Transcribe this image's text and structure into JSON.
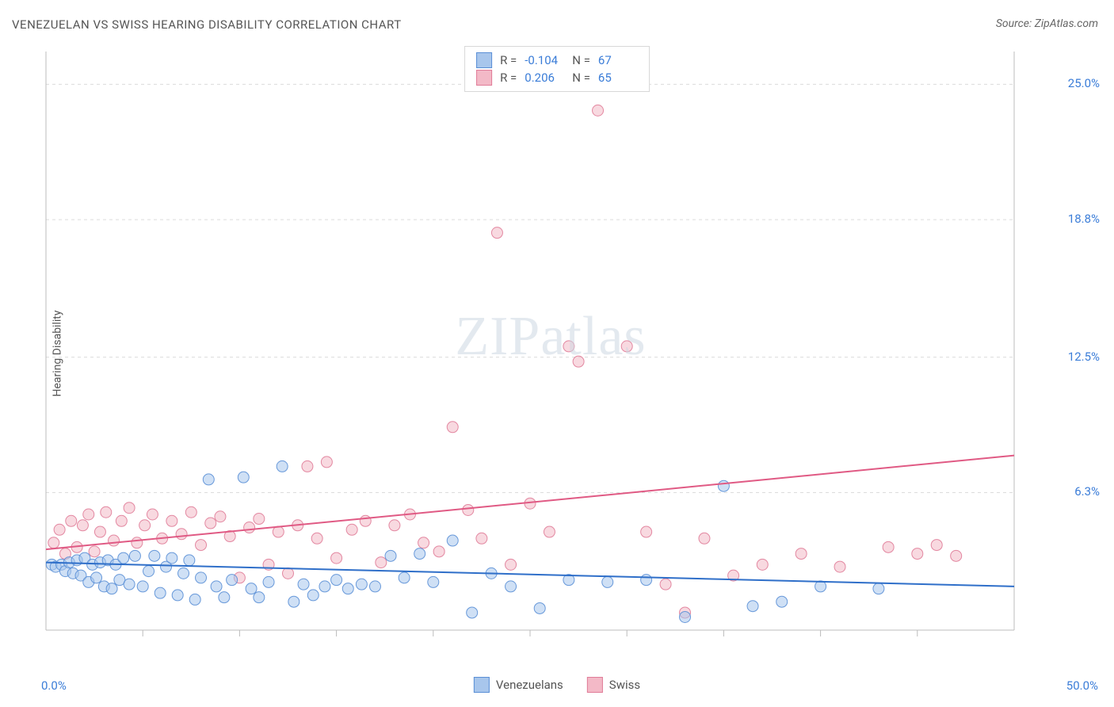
{
  "title": "VENEZUELAN VS SWISS HEARING DISABILITY CORRELATION CHART",
  "source": "Source: ZipAtlas.com",
  "yaxis_label": "Hearing Disability",
  "watermark_zip": "ZIP",
  "watermark_atlas": "atlas",
  "chart": {
    "type": "scatter-with-trend",
    "xlim": [
      0,
      50
    ],
    "ylim": [
      0,
      26.5
    ],
    "x_ticks_minor": [
      5,
      10,
      15,
      20,
      25,
      30,
      35,
      40,
      45
    ],
    "x_ticks_labels": [
      {
        "val": 0,
        "label": "0.0%"
      },
      {
        "val": 50,
        "label": "50.0%"
      }
    ],
    "y_ticks": [
      {
        "val": 6.3,
        "label": "6.3%"
      },
      {
        "val": 12.5,
        "label": "12.5%"
      },
      {
        "val": 18.8,
        "label": "18.8%"
      },
      {
        "val": 25.0,
        "label": "25.0%"
      }
    ],
    "grid_color": "#dcdcdc",
    "axis_color": "#bcbcbc",
    "background_color": "#ffffff",
    "marker_radius": 7,
    "marker_opacity": 0.55,
    "marker_stroke_opacity": 0.9,
    "trend_line_width": 2
  },
  "series": {
    "venezuelans": {
      "label": "Venezuelans",
      "color_fill": "#a8c6ec",
      "color_stroke": "#5a8fd6",
      "trend_color": "#2f6fc9",
      "R": "-0.104",
      "N": "67",
      "trend": {
        "x1": 0,
        "y1": 3.1,
        "x2": 50,
        "y2": 2.0
      },
      "points": [
        [
          0.3,
          3.0
        ],
        [
          0.5,
          2.9
        ],
        [
          0.8,
          3.0
        ],
        [
          1.0,
          2.7
        ],
        [
          1.2,
          3.1
        ],
        [
          1.4,
          2.6
        ],
        [
          1.6,
          3.2
        ],
        [
          1.8,
          2.5
        ],
        [
          2.0,
          3.3
        ],
        [
          2.2,
          2.2
        ],
        [
          2.4,
          3.0
        ],
        [
          2.6,
          2.4
        ],
        [
          2.8,
          3.1
        ],
        [
          3.0,
          2.0
        ],
        [
          3.2,
          3.2
        ],
        [
          3.4,
          1.9
        ],
        [
          3.6,
          3.0
        ],
        [
          3.8,
          2.3
        ],
        [
          4.0,
          3.3
        ],
        [
          4.3,
          2.1
        ],
        [
          4.6,
          3.4
        ],
        [
          5.0,
          2.0
        ],
        [
          5.3,
          2.7
        ],
        [
          5.6,
          3.4
        ],
        [
          5.9,
          1.7
        ],
        [
          6.2,
          2.9
        ],
        [
          6.5,
          3.3
        ],
        [
          6.8,
          1.6
        ],
        [
          7.1,
          2.6
        ],
        [
          7.4,
          3.2
        ],
        [
          7.7,
          1.4
        ],
        [
          8.0,
          2.4
        ],
        [
          8.4,
          6.9
        ],
        [
          8.8,
          2.0
        ],
        [
          9.2,
          1.5
        ],
        [
          9.6,
          2.3
        ],
        [
          10.2,
          7.0
        ],
        [
          10.6,
          1.9
        ],
        [
          11.0,
          1.5
        ],
        [
          11.5,
          2.2
        ],
        [
          12.2,
          7.5
        ],
        [
          12.8,
          1.3
        ],
        [
          13.3,
          2.1
        ],
        [
          13.8,
          1.6
        ],
        [
          14.4,
          2.0
        ],
        [
          15.0,
          2.3
        ],
        [
          15.6,
          1.9
        ],
        [
          16.3,
          2.1
        ],
        [
          17.0,
          2.0
        ],
        [
          17.8,
          3.4
        ],
        [
          18.5,
          2.4
        ],
        [
          19.3,
          3.5
        ],
        [
          20.0,
          2.2
        ],
        [
          21.0,
          4.1
        ],
        [
          22.0,
          0.8
        ],
        [
          23.0,
          2.6
        ],
        [
          24.0,
          2.0
        ],
        [
          25.5,
          1.0
        ],
        [
          27.0,
          2.3
        ],
        [
          29.0,
          2.2
        ],
        [
          31.0,
          2.3
        ],
        [
          33.0,
          0.6
        ],
        [
          35.0,
          6.6
        ],
        [
          36.5,
          1.1
        ],
        [
          38.0,
          1.3
        ],
        [
          40.0,
          2.0
        ],
        [
          43.0,
          1.9
        ]
      ]
    },
    "swiss": {
      "label": "Swiss",
      "color_fill": "#f3b9c7",
      "color_stroke": "#e07c98",
      "trend_color": "#e05a84",
      "R": "0.206",
      "N": "65",
      "trend": {
        "x1": 0,
        "y1": 3.7,
        "x2": 50,
        "y2": 8.0
      },
      "points": [
        [
          0.4,
          4.0
        ],
        [
          0.7,
          4.6
        ],
        [
          1.0,
          3.5
        ],
        [
          1.3,
          5.0
        ],
        [
          1.6,
          3.8
        ],
        [
          1.9,
          4.8
        ],
        [
          2.2,
          5.3
        ],
        [
          2.5,
          3.6
        ],
        [
          2.8,
          4.5
        ],
        [
          3.1,
          5.4
        ],
        [
          3.5,
          4.1
        ],
        [
          3.9,
          5.0
        ],
        [
          4.3,
          5.6
        ],
        [
          4.7,
          4.0
        ],
        [
          5.1,
          4.8
        ],
        [
          5.5,
          5.3
        ],
        [
          6.0,
          4.2
        ],
        [
          6.5,
          5.0
        ],
        [
          7.0,
          4.4
        ],
        [
          7.5,
          5.4
        ],
        [
          8.0,
          3.9
        ],
        [
          8.5,
          4.9
        ],
        [
          9.0,
          5.2
        ],
        [
          9.5,
          4.3
        ],
        [
          10.0,
          2.4
        ],
        [
          10.5,
          4.7
        ],
        [
          11.0,
          5.1
        ],
        [
          11.5,
          3.0
        ],
        [
          12.0,
          4.5
        ],
        [
          12.5,
          2.6
        ],
        [
          13.0,
          4.8
        ],
        [
          13.5,
          7.5
        ],
        [
          14.0,
          4.2
        ],
        [
          14.5,
          7.7
        ],
        [
          15.0,
          3.3
        ],
        [
          15.8,
          4.6
        ],
        [
          16.5,
          5.0
        ],
        [
          17.3,
          3.1
        ],
        [
          18.0,
          4.8
        ],
        [
          18.8,
          5.3
        ],
        [
          19.5,
          4.0
        ],
        [
          20.3,
          3.6
        ],
        [
          21.0,
          9.3
        ],
        [
          21.8,
          5.5
        ],
        [
          22.5,
          4.2
        ],
        [
          23.3,
          18.2
        ],
        [
          24.0,
          3.0
        ],
        [
          25.0,
          5.8
        ],
        [
          26.0,
          4.5
        ],
        [
          27.0,
          13.0
        ],
        [
          27.5,
          12.3
        ],
        [
          28.5,
          23.8
        ],
        [
          30.0,
          13.0
        ],
        [
          31.0,
          4.5
        ],
        [
          32.0,
          2.1
        ],
        [
          33.0,
          0.8
        ],
        [
          34.0,
          4.2
        ],
        [
          35.5,
          2.5
        ],
        [
          37.0,
          3.0
        ],
        [
          39.0,
          3.5
        ],
        [
          41.0,
          2.9
        ],
        [
          43.5,
          3.8
        ],
        [
          45.0,
          3.5
        ],
        [
          46.0,
          3.9
        ],
        [
          47.0,
          3.4
        ]
      ]
    }
  },
  "stats_legend": {
    "r_label": "R =",
    "n_label": "N ="
  },
  "bottom_legend_order": [
    "venezuelans",
    "swiss"
  ]
}
